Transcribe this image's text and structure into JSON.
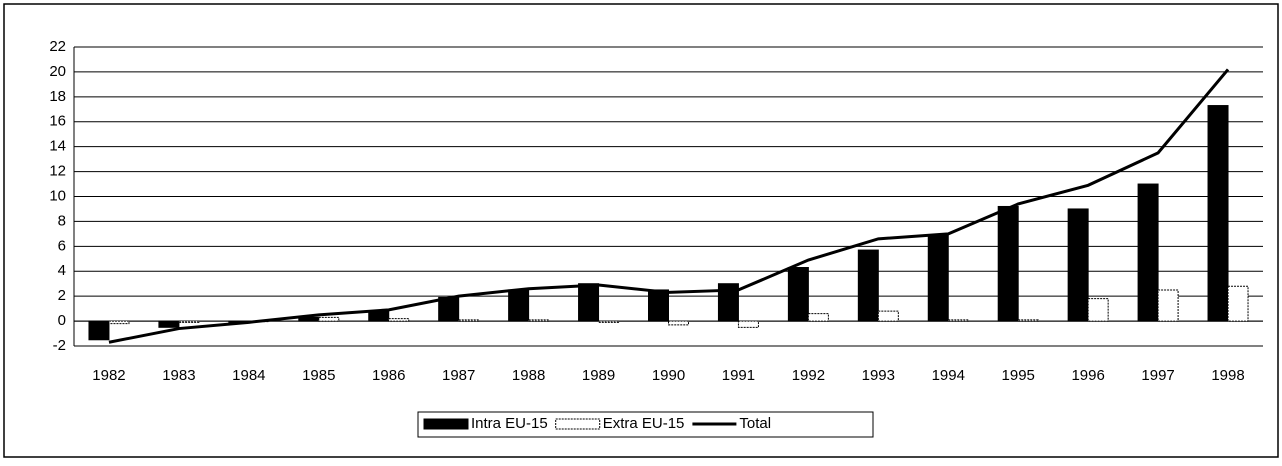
{
  "chart_data": {
    "type": "bar-line",
    "categories": [
      "1982",
      "1983",
      "1984",
      "1985",
      "1986",
      "1987",
      "1988",
      "1989",
      "1990",
      "1991",
      "1992",
      "1993",
      "1994",
      "1995",
      "1996",
      "1997",
      "1998"
    ],
    "series": [
      {
        "name": "Intra EU-15",
        "type": "bar",
        "color": "#000000",
        "values": [
          -1.5,
          -0.5,
          -0.1,
          0.3,
          0.8,
          1.9,
          2.5,
          3.0,
          2.5,
          3.0,
          4.3,
          5.7,
          6.9,
          9.2,
          9.0,
          11.0,
          17.3
        ]
      },
      {
        "name": "Extra EU-15",
        "type": "bar",
        "color": "#ffffff",
        "values": [
          -0.2,
          -0.1,
          0.0,
          0.3,
          0.2,
          0.1,
          0.1,
          -0.1,
          -0.3,
          -0.5,
          0.6,
          0.8,
          0.1,
          0.1,
          1.8,
          2.5,
          2.8
        ]
      },
      {
        "name": "Total",
        "type": "line",
        "color": "#000000",
        "values": [
          -1.7,
          -0.6,
          -0.1,
          0.5,
          0.9,
          2.0,
          2.6,
          2.9,
          2.3,
          2.5,
          4.9,
          6.6,
          7.0,
          9.4,
          10.9,
          13.5,
          20.2
        ]
      }
    ],
    "ylim": [
      -2,
      22
    ],
    "yticks": [
      -2,
      0,
      2,
      4,
      6,
      8,
      10,
      12,
      14,
      16,
      18,
      20,
      22
    ],
    "grid": true,
    "legend": "bottom"
  }
}
